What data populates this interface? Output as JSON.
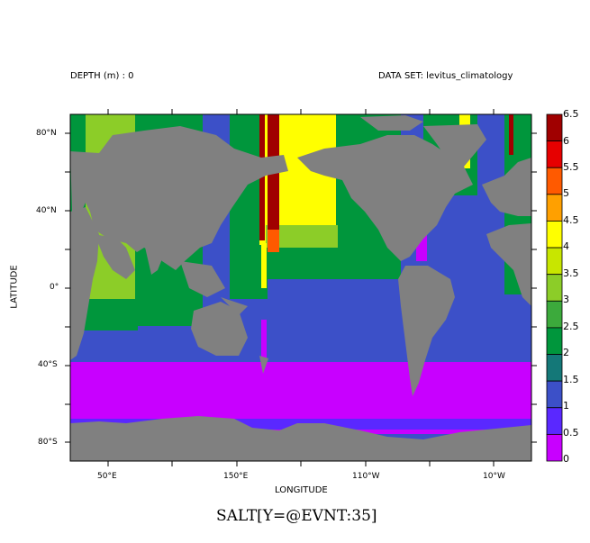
{
  "header": {
    "depth_label": "DEPTH (m) : 0",
    "dataset_label": "DATA SET: levitus_climatology"
  },
  "axes": {
    "xlabel": "LONGITUDE",
    "ylabel": "LATITUDE",
    "x_ticks": [
      "50°E",
      "150°E",
      "110°W",
      "10°W"
    ],
    "y_ticks": [
      "80°N",
      "40°N",
      "0°",
      "40°S",
      "80°S"
    ]
  },
  "colorbar": {
    "levels": [
      "6.5",
      "6",
      "5.5",
      "5",
      "4.5",
      "4",
      "3.5",
      "3",
      "2.5",
      "2",
      "1.5",
      "1",
      "0.5",
      "0"
    ],
    "colors": [
      "#a00000",
      "#e60000",
      "#ff5a00",
      "#ffa000",
      "#ffff00",
      "#c8e600",
      "#8ccd28",
      "#3caa3c",
      "#00963c",
      "#147878",
      "#3c50c8",
      "#5a28ff",
      "#c800ff"
    ]
  },
  "plot_title": "SALT[Y=@EVNT:35]",
  "colors": {
    "land": "#808080"
  }
}
